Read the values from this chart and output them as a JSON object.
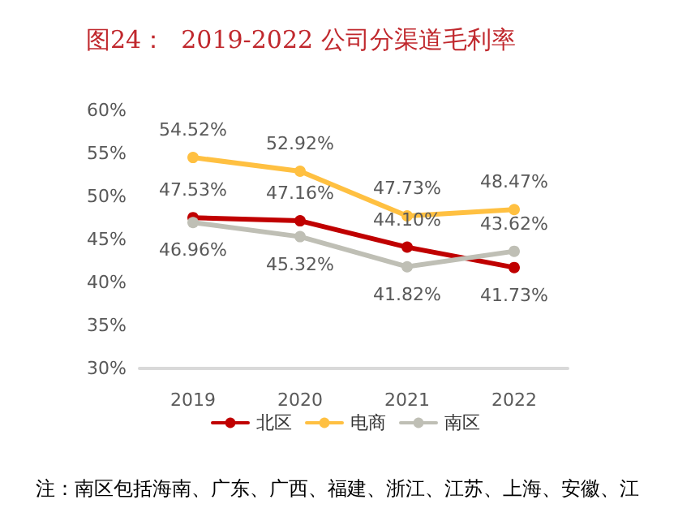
{
  "chart_data": {
    "type": "line",
    "title": "图24：  2019-2022 公司分渠道毛利率",
    "categories": [
      "2019",
      "2020",
      "2021",
      "2022"
    ],
    "series": [
      {
        "name": "北区",
        "color": "#c00000",
        "values": [
          47.53,
          47.16,
          44.1,
          41.73
        ],
        "value_labels": [
          "47.53%",
          "47.16%",
          "44.10%",
          "41.73%"
        ]
      },
      {
        "name": "电商",
        "color": "#ffc041",
        "values": [
          54.52,
          52.92,
          47.73,
          48.47
        ],
        "value_labels": [
          "54.52%",
          "52.92%",
          "47.73%",
          "48.47%"
        ]
      },
      {
        "name": "南区",
        "color": "#bfbfb5",
        "values": [
          46.96,
          45.32,
          41.82,
          43.62
        ],
        "value_labels": [
          "46.96%",
          "45.32%",
          "41.82%",
          "43.62%"
        ]
      }
    ],
    "ylim": [
      30,
      60
    ],
    "yticks": [
      {
        "value": 30,
        "label": "30%"
      },
      {
        "value": 35,
        "label": "35%"
      },
      {
        "value": 40,
        "label": "40%"
      },
      {
        "value": 45,
        "label": "45%"
      },
      {
        "value": 50,
        "label": "50%"
      },
      {
        "value": 55,
        "label": "55%"
      },
      {
        "value": 60,
        "label": "60%"
      }
    ],
    "grid": false,
    "legend": "bottom",
    "marker": "circle",
    "line_style": "solid",
    "annotations": [
      "注：南区包括海南、广东、广西、福建、浙江、江苏、上海、安徽、江"
    ]
  }
}
